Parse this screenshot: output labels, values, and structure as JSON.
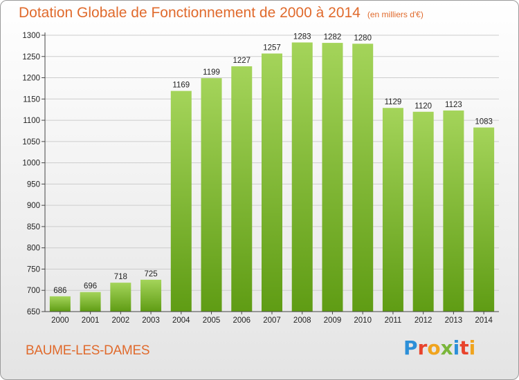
{
  "title": "Dotation Globale de Fonctionnement de 2000 à 2014",
  "unit": "(en milliers d'€)",
  "commune": "BAUME-LES-DAMES",
  "logo": {
    "letters": [
      "P",
      "r",
      "o",
      "x",
      "i",
      "t",
      "i"
    ],
    "colors": [
      "#2c8fd8",
      "#e8432c",
      "#f0a41e",
      "#7ab63a",
      "#2c8fd8",
      "#e8432c",
      "#f0a41e"
    ]
  },
  "colors": {
    "bar_top": "#a4d45a",
    "bar_bottom": "#5f9c14",
    "grid": "#cccccc"
  },
  "chart_data": {
    "type": "bar",
    "categories": [
      "2000",
      "2001",
      "2002",
      "2003",
      "2004",
      "2005",
      "2006",
      "2007",
      "2008",
      "2009",
      "2010",
      "2011",
      "2012",
      "2013",
      "2014"
    ],
    "values": [
      686,
      696,
      718,
      725,
      1169,
      1199,
      1227,
      1257,
      1283,
      1282,
      1280,
      1129,
      1120,
      1123,
      1083
    ],
    "ylim": [
      650,
      1300
    ],
    "yticks": [
      650,
      700,
      750,
      800,
      850,
      900,
      950,
      1000,
      1050,
      1100,
      1150,
      1200,
      1250,
      1300
    ],
    "grid": true,
    "data_labels": true
  }
}
